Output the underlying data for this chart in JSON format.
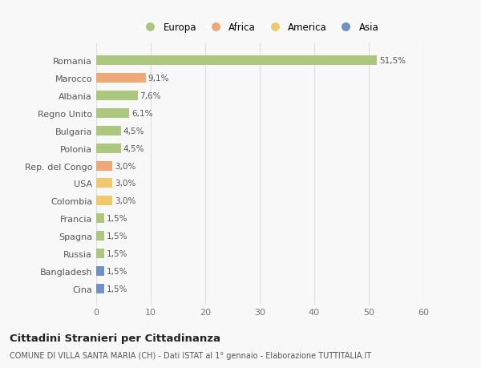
{
  "labels": [
    "Romania",
    "Marocco",
    "Albania",
    "Regno Unito",
    "Bulgaria",
    "Polonia",
    "Rep. del Congo",
    "USA",
    "Colombia",
    "Francia",
    "Spagna",
    "Russia",
    "Bangladesh",
    "Cina"
  ],
  "values": [
    51.5,
    9.1,
    7.6,
    6.1,
    4.5,
    4.5,
    3.0,
    3.0,
    3.0,
    1.5,
    1.5,
    1.5,
    1.5,
    1.5
  ],
  "value_labels": [
    "51,5%",
    "9,1%",
    "7,6%",
    "6,1%",
    "4,5%",
    "4,5%",
    "3,0%",
    "3,0%",
    "3,0%",
    "1,5%",
    "1,5%",
    "1,5%",
    "1,5%",
    "1,5%"
  ],
  "bar_colors": [
    "#adc87e",
    "#f0a878",
    "#adc87e",
    "#adc87e",
    "#adc87e",
    "#adc87e",
    "#f0a878",
    "#f0c96e",
    "#f0c96e",
    "#adc87e",
    "#adc87e",
    "#adc87e",
    "#7090c8",
    "#7090c8"
  ],
  "legend_labels": [
    "Europa",
    "Africa",
    "America",
    "Asia"
  ],
  "legend_colors": [
    "#adc87e",
    "#f0a878",
    "#f0c96e",
    "#7090c8"
  ],
  "title": "Cittadini Stranieri per Cittadinanza",
  "subtitle": "COMUNE DI VILLA SANTA MARIA (CH) - Dati ISTAT al 1° gennaio - Elaborazione TUTTITALIA.IT",
  "xlim": [
    0,
    60
  ],
  "xticks": [
    0,
    10,
    20,
    30,
    40,
    50,
    60
  ],
  "background_color": "#f8f8f8",
  "grid_color": "#e0e0e0",
  "bar_height": 0.55
}
